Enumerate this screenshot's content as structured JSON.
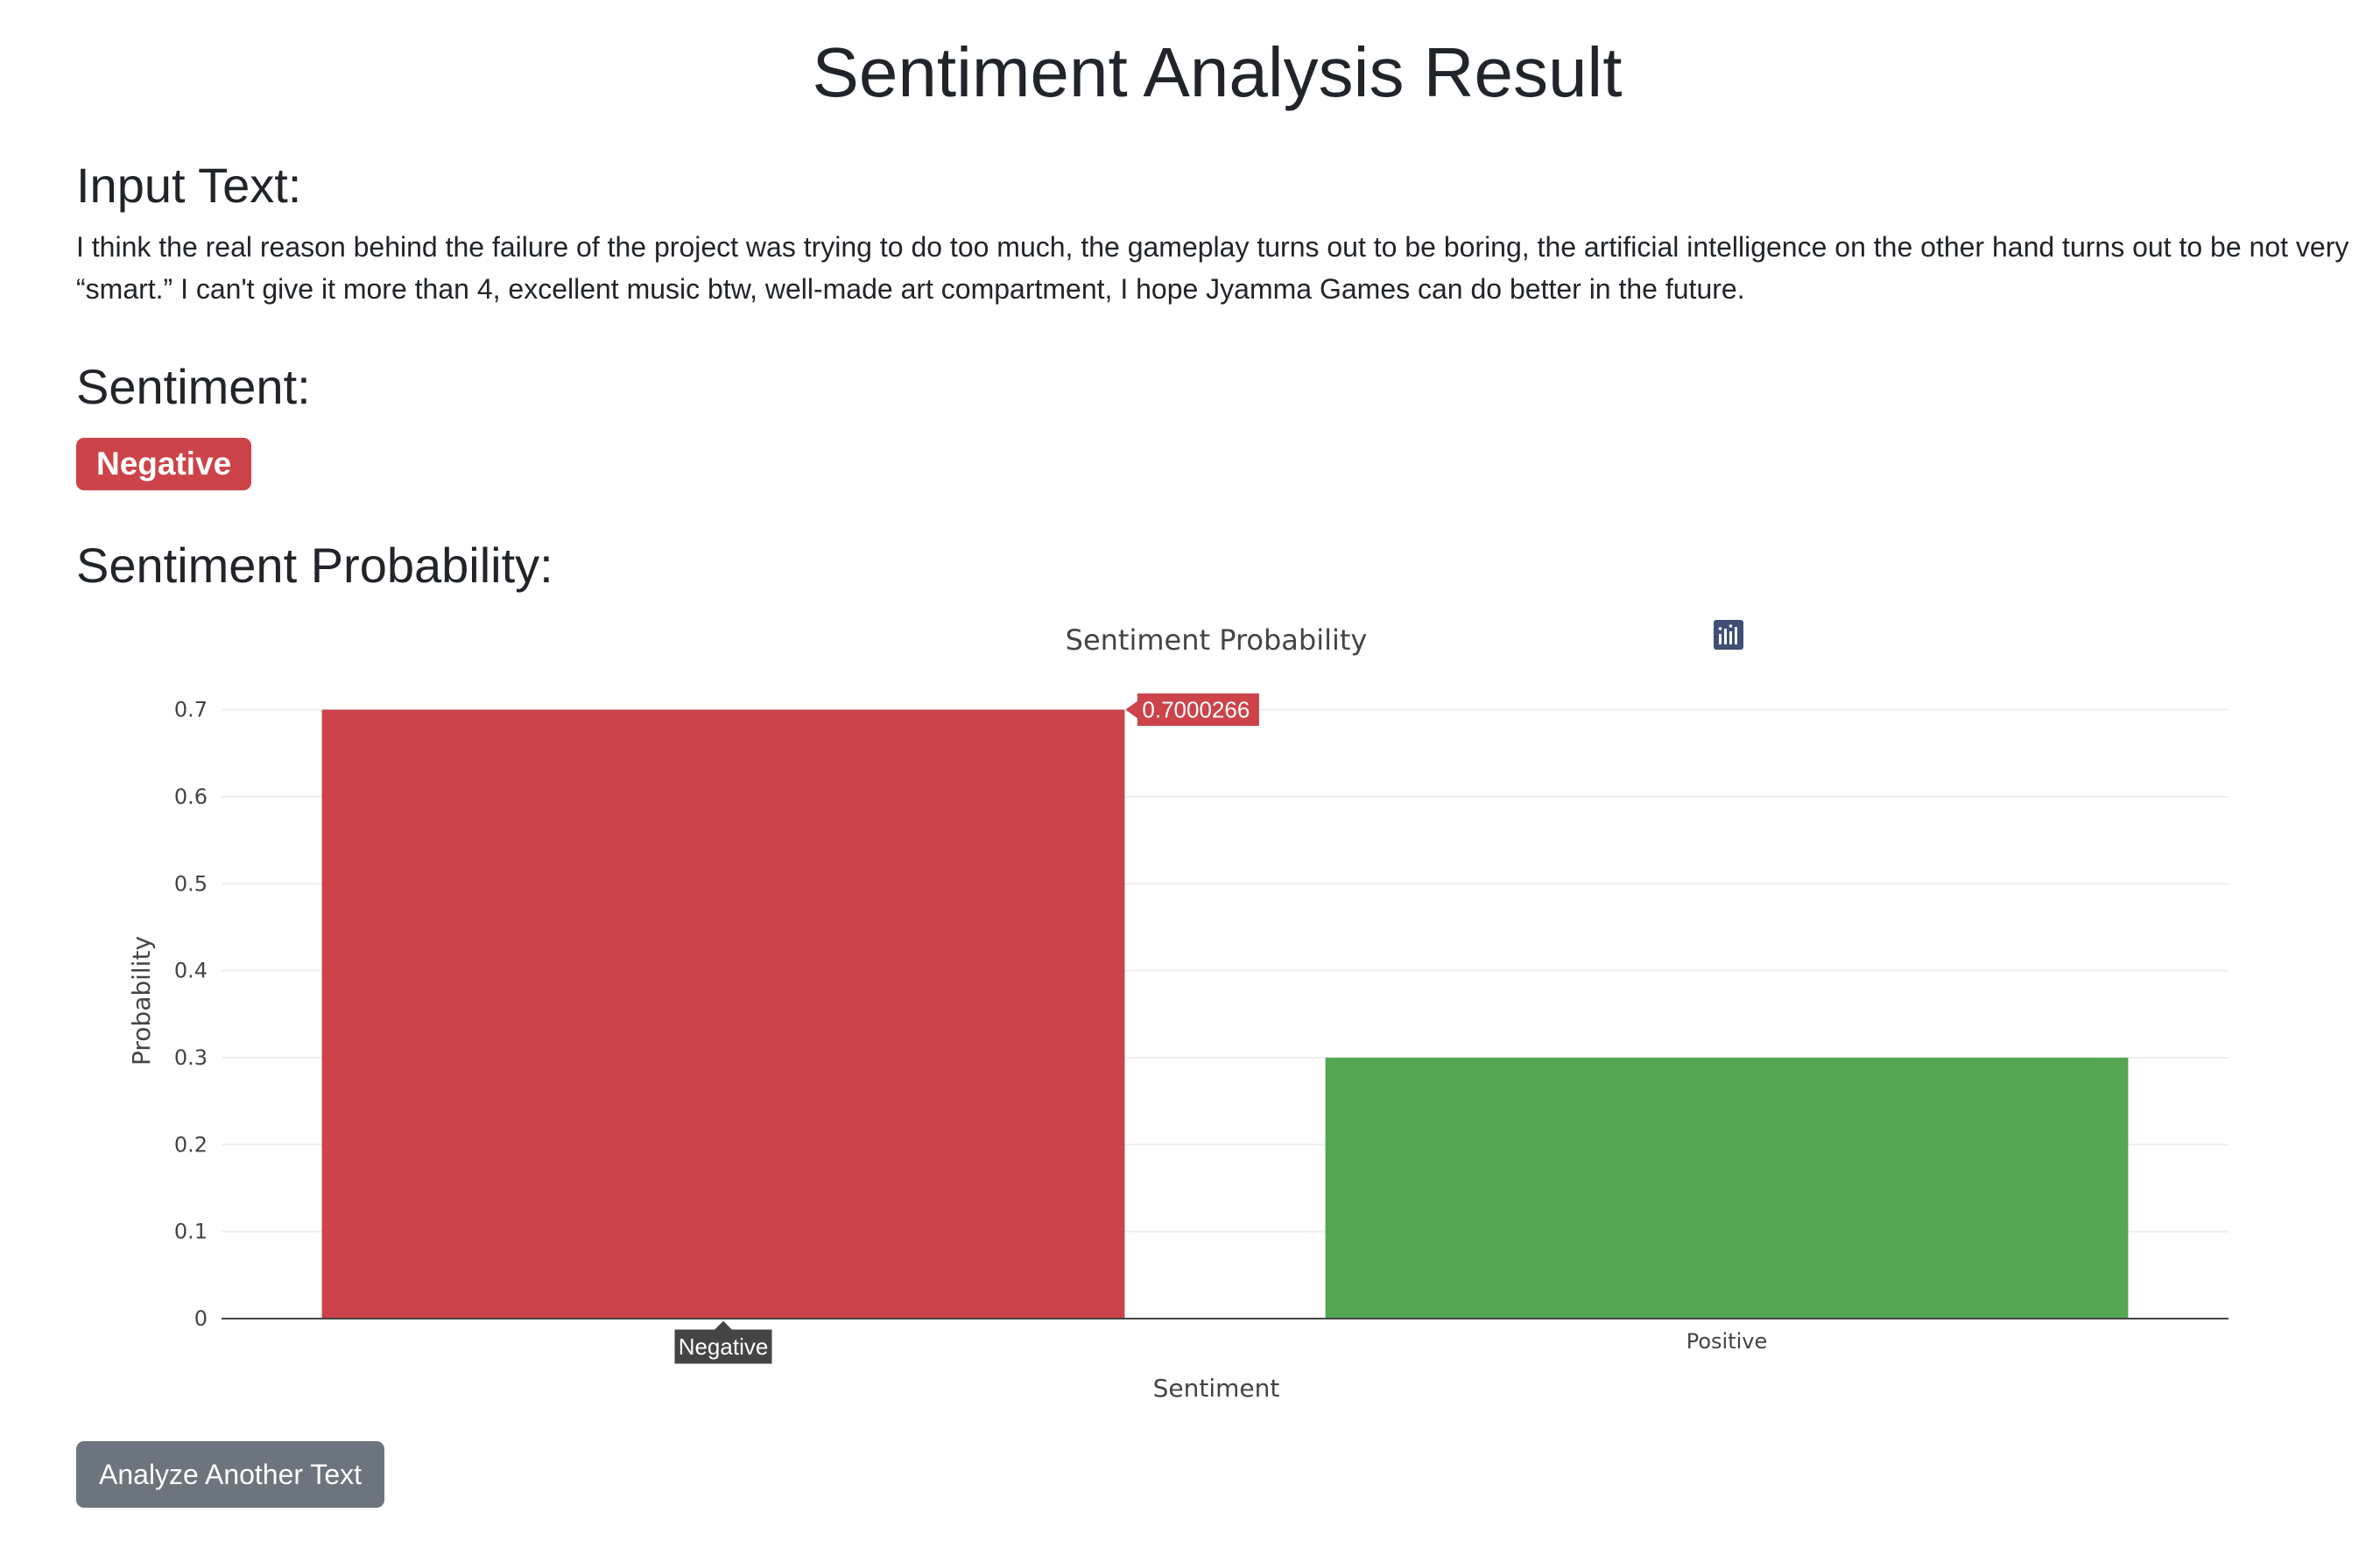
{
  "page": {
    "title": "Sentiment Analysis Result",
    "input_heading": "Input Text:",
    "input_text": "I think the real reason behind the failure of the project was trying to do too much, the gameplay turns out to be boring, the artificial intelligence on the other hand turns out to be not very “smart.” I can't give it more than 4, excellent music btw, well-made art compartment, I hope Jyamma Games can do better in the future.",
    "sentiment_heading": "Sentiment:",
    "sentiment_label": "Negative",
    "probability_heading": "Sentiment Probability:",
    "analyze_button": "Analyze Another Text"
  },
  "modebar": {
    "icons": [
      "camera-icon",
      "zoom-icon",
      "pan-icon",
      "box-select-icon",
      "lasso-select-icon",
      "zoom-in-icon",
      "zoom-out-icon",
      "autoscale-icon",
      "reset-axes-icon",
      "spike-lines-icon",
      "hover-closest-icon",
      "hover-compare-icon",
      "plotly-logo-icon"
    ]
  },
  "hover": {
    "value_label": "0.7000266",
    "category_label": "Negative"
  },
  "chart_data": {
    "type": "bar",
    "title": "Sentiment Probability",
    "xlabel": "Sentiment",
    "ylabel": "Probability",
    "categories": [
      "Negative",
      "Positive"
    ],
    "values": [
      0.7000266,
      0.2999734
    ],
    "colors": [
      "#cc434a",
      "#54a653"
    ],
    "ylim": [
      0,
      0.7368
    ],
    "yticks": [
      0,
      0.1,
      0.2,
      0.3,
      0.4,
      0.5,
      0.6,
      0.7
    ],
    "ytick_labels": [
      "0",
      "0.1",
      "0.2",
      "0.3",
      "0.4",
      "0.5",
      "0.6",
      "0.7"
    ],
    "grid": true
  }
}
